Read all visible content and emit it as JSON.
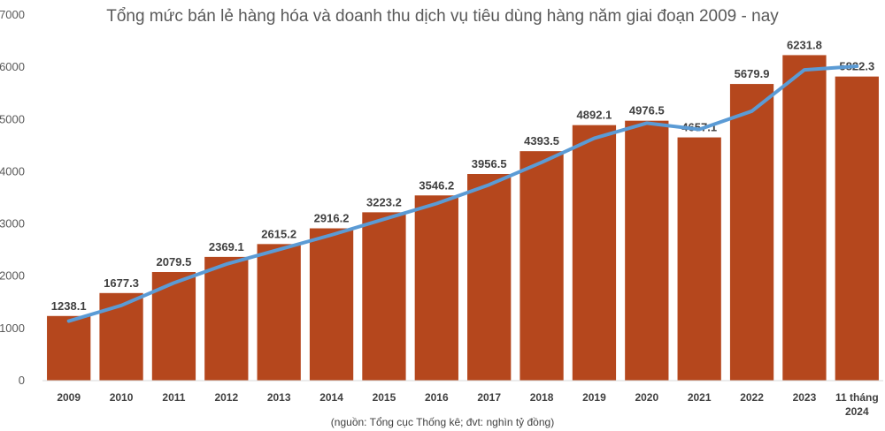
{
  "chart_data": {
    "type": "bar",
    "title": "Tổng mức bán lẻ hàng hóa và doanh thu dịch vụ tiêu dùng hàng năm giai đoạn 2009 - nay",
    "source_note": "(nguồn: Tổng cục Thống kê; đvt: nghìn tỷ đồng)",
    "categories": [
      [
        "2009"
      ],
      [
        "2010"
      ],
      [
        "2011"
      ],
      [
        "2012"
      ],
      [
        "2013"
      ],
      [
        "2014"
      ],
      [
        "2015"
      ],
      [
        "2016"
      ],
      [
        "2017"
      ],
      [
        "2018"
      ],
      [
        "2019"
      ],
      [
        "2020"
      ],
      [
        "2021"
      ],
      [
        "2022"
      ],
      [
        "2023"
      ],
      [
        "11 tháng",
        "2024"
      ]
    ],
    "series": [
      {
        "type": "bar",
        "color": "#b5471d",
        "values": [
          1238.1,
          1677.3,
          2079.5,
          2369.1,
          2615.2,
          2916.2,
          3223.2,
          3546.2,
          3956.5,
          4393.5,
          4892.1,
          4976.5,
          4657.1,
          5679.9,
          6231.8,
          5822.3
        ],
        "labels": [
          "1238.1",
          "1677.3",
          "2079.5",
          "2369.1",
          "2615.2",
          "2916.2",
          "3223.2",
          "3546.2",
          "3956.5",
          "4393.5",
          "4892.1",
          "4976.5",
          "4657.1",
          "5679.9",
          "6231.8",
          "5822.3"
        ]
      },
      {
        "type": "line",
        "color": "#5b9bd5",
        "values": [
          1140,
          1440,
          1870,
          2230,
          2510,
          2790,
          3090,
          3390,
          3750,
          4180,
          4640,
          4930,
          4810,
          5160,
          5950,
          6020
        ]
      }
    ],
    "yticks": [
      "0",
      "1000",
      "2000",
      "3000",
      "4000",
      "5000",
      "6000",
      "7000"
    ],
    "ylim": [
      0,
      7000
    ],
    "grid": false
  }
}
